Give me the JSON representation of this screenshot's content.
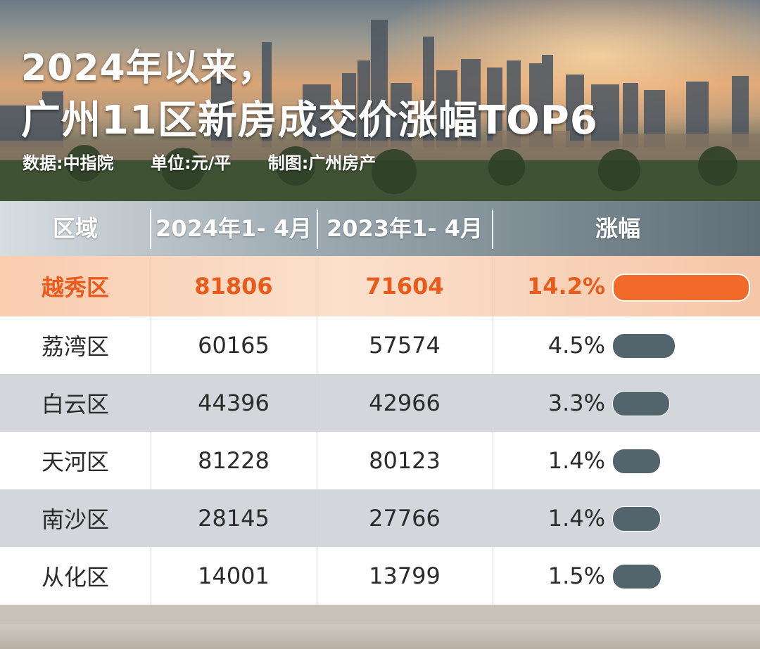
{
  "header": {
    "title_line1": "2024年以来，",
    "title_line2": "广州11区新房成交价涨幅TOP6",
    "source": "数据:中指院",
    "unit": "单位:元/平",
    "credit": "制图:广州房产"
  },
  "chart_data": {
    "type": "table",
    "columns": [
      "区域",
      "2024年1- 4月",
      "2023年1- 4月",
      "涨幅"
    ],
    "rows": [
      {
        "region": "越秀区",
        "y2024": "81806",
        "y2023": "71604",
        "change": "14.2%",
        "change_value": 14.2,
        "highlight": true
      },
      {
        "region": "荔湾区",
        "y2024": "60165",
        "y2023": "57574",
        "change": "4.5%",
        "change_value": 4.5
      },
      {
        "region": "白云区",
        "y2024": "44396",
        "y2023": "42966",
        "change": "3.3%",
        "change_value": 3.3
      },
      {
        "region": "天河区",
        "y2024": "81228",
        "y2023": "80123",
        "change": "1.4%",
        "change_value": 1.4
      },
      {
        "region": "南沙区",
        "y2024": "28145",
        "y2023": "27766",
        "change": "1.4%",
        "change_value": 1.4
      },
      {
        "region": "从化区",
        "y2024": "14001",
        "y2023": "13799",
        "change": "1.5%",
        "change_value": 1.5
      }
    ]
  },
  "colors": {
    "highlight_text": "#ea5a1b",
    "highlight_bar": "#f26a2a",
    "bar": "#52656d"
  }
}
